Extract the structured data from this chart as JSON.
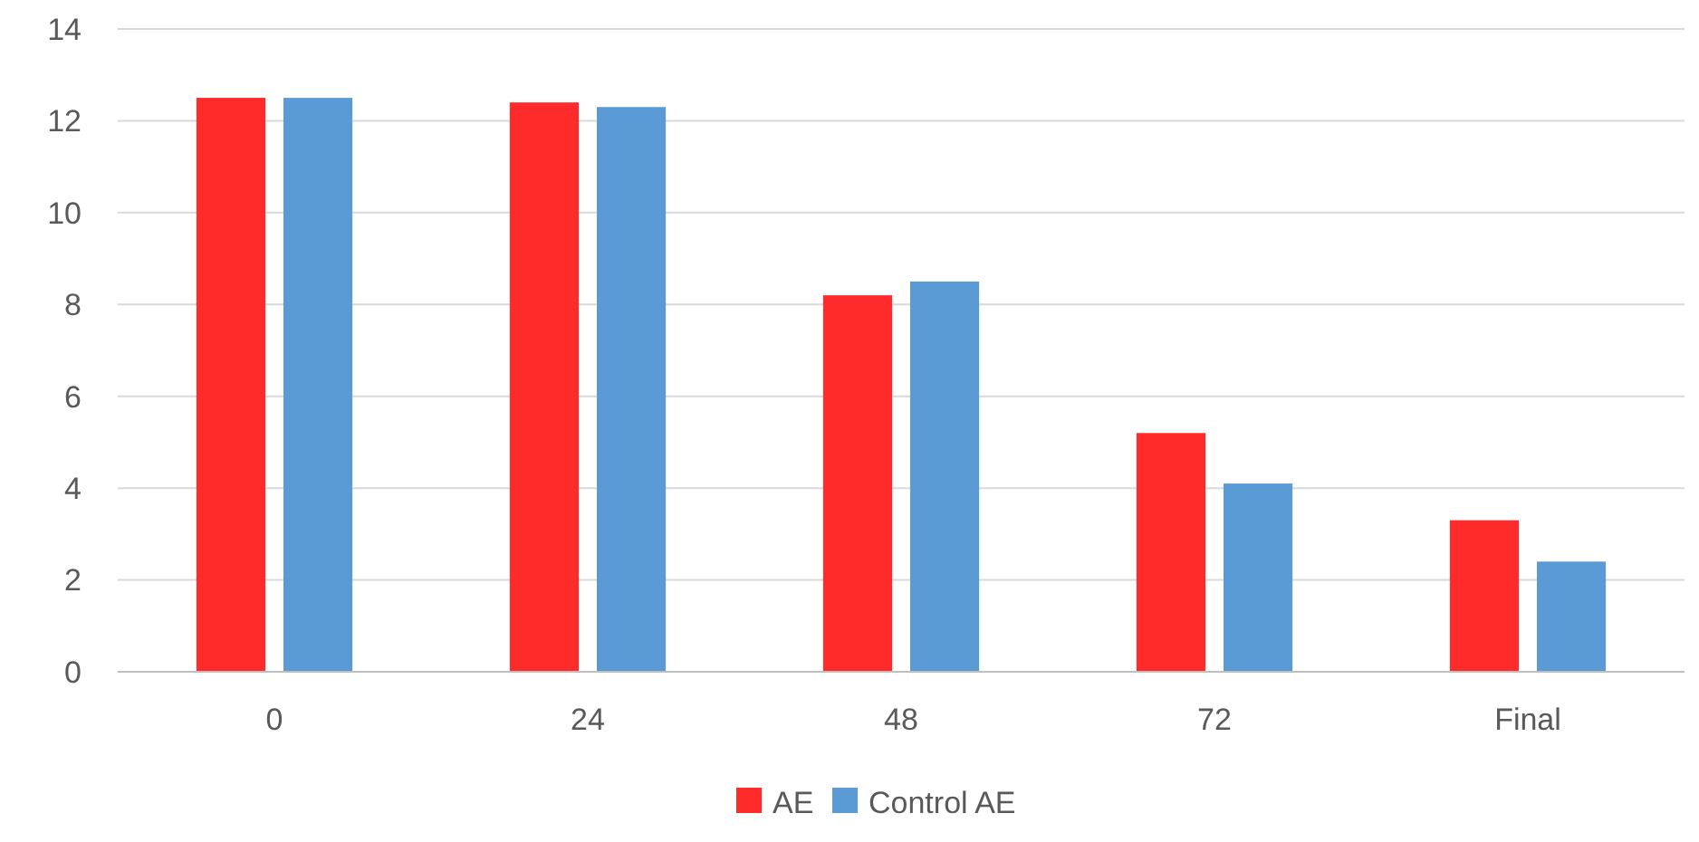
{
  "chart_data": {
    "type": "bar",
    "categories": [
      "0",
      "24",
      "48",
      "72",
      "Final"
    ],
    "series": [
      {
        "name": "AE",
        "color": "#ff2b2b",
        "values": [
          12.5,
          12.4,
          8.2,
          5.2,
          3.3
        ]
      },
      {
        "name": "Control AE",
        "color": "#5b9bd5",
        "values": [
          12.5,
          12.3,
          8.5,
          4.1,
          2.4
        ]
      }
    ],
    "ylim": [
      0,
      14
    ],
    "yticks": [
      0,
      2,
      4,
      6,
      8,
      10,
      12,
      14
    ],
    "grid": "y",
    "legend": "bottom"
  }
}
